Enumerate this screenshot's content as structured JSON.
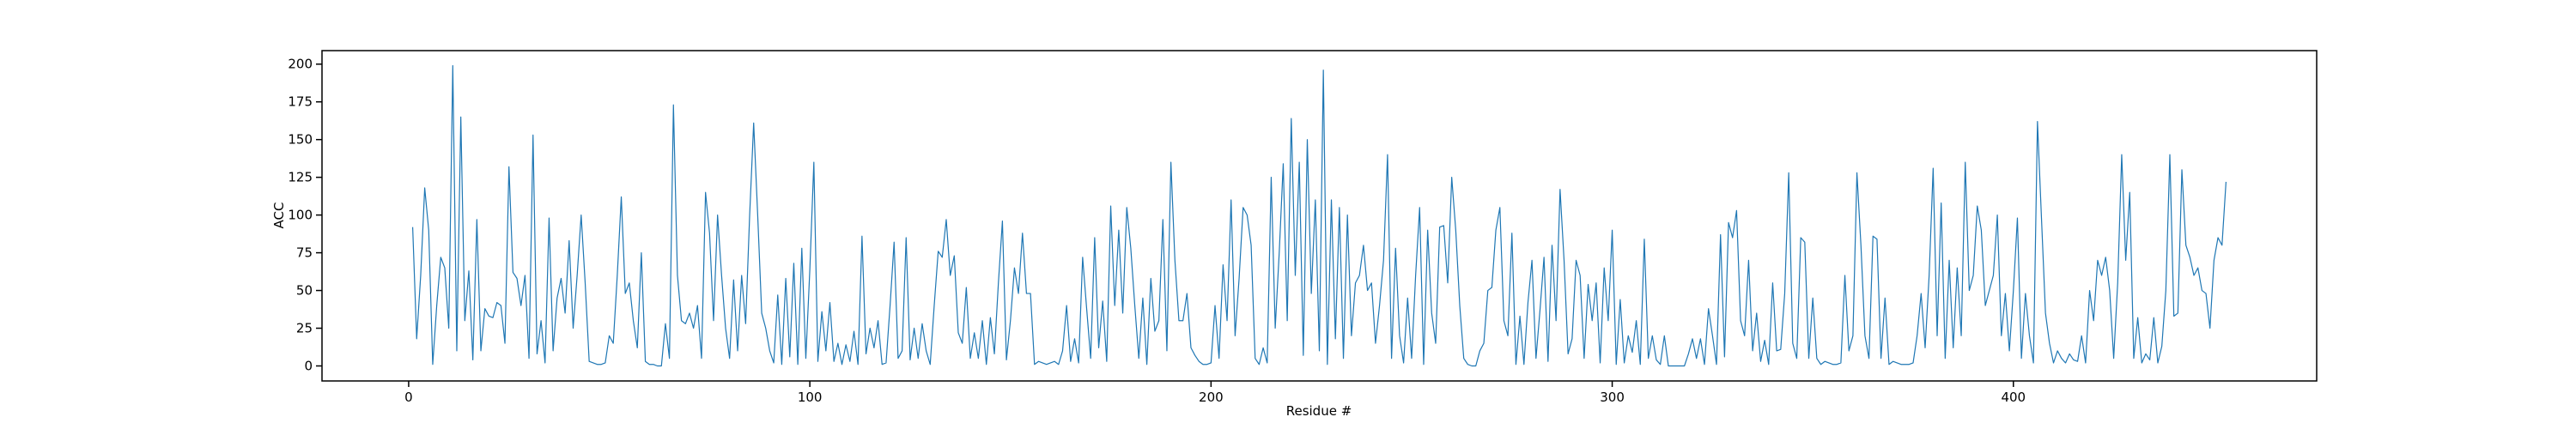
{
  "chart_data": {
    "type": "line",
    "xlabel": "Residue #",
    "ylabel": "ACC",
    "color": "#1f77b4",
    "x": [
      1,
      2,
      3,
      4,
      5,
      6,
      7,
      8,
      9,
      10,
      11,
      12,
      13,
      14,
      15,
      16,
      17,
      18,
      19,
      20,
      21,
      22,
      23,
      24,
      25,
      26,
      27,
      28,
      29,
      30,
      31,
      32,
      33,
      34,
      35,
      36,
      37,
      38,
      39,
      40,
      41,
      42,
      43,
      44,
      45,
      46,
      47,
      48,
      49,
      50,
      51,
      52,
      53,
      54,
      55,
      56,
      57,
      58,
      59,
      60,
      61,
      62,
      63,
      64,
      65,
      66,
      67,
      68,
      69,
      70,
      71,
      72,
      73,
      74,
      75,
      76,
      77,
      78,
      79,
      80,
      81,
      82,
      83,
      84,
      85,
      86,
      87,
      88,
      89,
      90,
      91,
      92,
      93,
      94,
      95,
      96,
      97,
      98,
      99,
      100,
      101,
      102,
      103,
      104,
      105,
      106,
      107,
      108,
      109,
      110,
      111,
      112,
      113,
      114,
      115,
      116,
      117,
      118,
      119,
      120,
      121,
      122,
      123,
      124,
      125,
      126,
      127,
      128,
      129,
      130,
      131,
      132,
      133,
      134,
      135,
      136,
      137,
      138,
      139,
      140,
      141,
      142,
      143,
      144,
      145,
      146,
      147,
      148,
      149,
      150,
      151,
      152,
      153,
      154,
      155,
      156,
      157,
      158,
      159,
      160,
      161,
      162,
      163,
      164,
      165,
      166,
      167,
      168,
      169,
      170,
      171,
      172,
      173,
      174,
      175,
      176,
      177,
      178,
      179,
      180,
      181,
      182,
      183,
      184,
      185,
      186,
      187,
      188,
      189,
      190,
      191,
      192,
      193,
      194,
      195,
      196,
      197,
      198,
      199,
      200,
      201,
      202,
      203,
      204,
      205,
      206,
      207,
      208,
      209,
      210,
      211,
      212,
      213,
      214,
      215,
      216,
      217,
      218,
      219,
      220,
      221,
      222,
      223,
      224,
      225,
      226,
      227,
      228,
      229,
      230,
      231,
      232,
      233,
      234,
      235,
      236,
      237,
      238,
      239,
      240,
      241,
      242,
      243,
      244,
      245,
      246,
      247,
      248,
      249,
      250,
      251,
      252,
      253,
      254,
      255,
      256,
      257,
      258,
      259,
      260,
      261,
      262,
      263,
      264,
      265,
      266,
      267,
      268,
      269,
      270,
      271,
      272,
      273,
      274,
      275,
      276,
      277,
      278,
      279,
      280,
      281,
      282,
      283,
      284,
      285,
      286,
      287,
      288,
      289,
      290,
      291,
      292,
      293,
      294,
      295,
      296,
      297,
      298,
      299,
      300,
      301,
      302,
      303,
      304,
      305,
      306,
      307,
      308,
      309,
      310,
      311,
      312,
      313,
      314,
      315,
      316,
      317,
      318,
      319,
      320,
      321,
      322,
      323,
      324,
      325,
      326,
      327,
      328,
      329,
      330,
      331,
      332,
      333,
      334,
      335,
      336,
      337,
      338,
      339,
      340,
      341,
      342,
      343,
      344,
      345,
      346,
      347,
      348,
      349,
      350,
      351,
      352,
      353,
      354,
      355,
      356,
      357,
      358,
      359,
      360,
      361,
      362,
      363,
      364,
      365,
      366,
      367,
      368,
      369,
      370,
      371,
      372,
      373,
      374,
      375,
      376,
      377,
      378,
      379,
      380,
      381,
      382,
      383,
      384,
      385,
      386,
      387,
      388,
      389,
      390,
      391,
      392,
      393,
      394,
      395,
      396,
      397,
      398,
      399,
      400,
      401,
      402,
      403,
      404,
      405,
      406,
      407,
      408,
      409,
      410,
      411,
      412,
      413,
      414,
      415,
      416,
      417,
      418,
      419,
      420,
      421,
      422,
      423,
      424,
      425,
      426,
      427,
      428,
      429,
      430,
      431,
      432,
      433,
      434,
      435,
      436,
      437,
      438,
      439,
      440,
      441,
      442,
      443,
      444,
      445,
      446,
      447,
      448,
      449,
      450,
      451,
      452,
      453
    ],
    "values": [
      92,
      18,
      60,
      118,
      90,
      1,
      40,
      72,
      65,
      25,
      199,
      10,
      165,
      30,
      63,
      4,
      97,
      10,
      38,
      33,
      32,
      42,
      40,
      15,
      132,
      62,
      58,
      40,
      60,
      5,
      153,
      8,
      30,
      2,
      98,
      10,
      45,
      58,
      35,
      83,
      25,
      60,
      100,
      55,
      3,
      2,
      1,
      1,
      2,
      20,
      15,
      60,
      112,
      48,
      55,
      30,
      12,
      75,
      3,
      1,
      1,
      0,
      0,
      28,
      5,
      173,
      60,
      30,
      28,
      35,
      25,
      40,
      5,
      115,
      88,
      30,
      100,
      60,
      25,
      5,
      57,
      10,
      60,
      28,
      100,
      161,
      100,
      35,
      25,
      10,
      2,
      47,
      1,
      58,
      6,
      68,
      1,
      78,
      5,
      64,
      135,
      3,
      36,
      10,
      42,
      3,
      15,
      1,
      14,
      3,
      23,
      1,
      86,
      8,
      25,
      12,
      30,
      1,
      2,
      40,
      82,
      5,
      10,
      85,
      4,
      25,
      5,
      28,
      10,
      1,
      40,
      76,
      72,
      97,
      60,
      73,
      22,
      15,
      52,
      5,
      22,
      5,
      30,
      1,
      32,
      8,
      55,
      96,
      4,
      30,
      65,
      48,
      88,
      48,
      48,
      1,
      3,
      2,
      1,
      2,
      3,
      1,
      10,
      40,
      3,
      18,
      2,
      72,
      38,
      5,
      85,
      12,
      43,
      3,
      106,
      40,
      90,
      35,
      105,
      78,
      40,
      5,
      45,
      1,
      58,
      23,
      30,
      97,
      10,
      135,
      70,
      30,
      30,
      48,
      12,
      7,
      3,
      1,
      1,
      2,
      40,
      5,
      67,
      30,
      110,
      20,
      58,
      105,
      100,
      80,
      5,
      1,
      12,
      2,
      125,
      25,
      75,
      134,
      30,
      164,
      60,
      135,
      7,
      150,
      48,
      110,
      10,
      196,
      1,
      110,
      18,
      105,
      5,
      100,
      20,
      55,
      60,
      80,
      50,
      55,
      15,
      40,
      70,
      140,
      5,
      78,
      20,
      2,
      45,
      5,
      60,
      105,
      1,
      90,
      35,
      15,
      92,
      93,
      55,
      125,
      90,
      40,
      5,
      1,
      0,
      0,
      10,
      15,
      50,
      52,
      90,
      105,
      30,
      20,
      88,
      1,
      33,
      1,
      42,
      70,
      5,
      37,
      72,
      3,
      80,
      30,
      117,
      70,
      8,
      18,
      70,
      60,
      5,
      54,
      30,
      55,
      2,
      65,
      30,
      90,
      1,
      44,
      2,
      20,
      9,
      30,
      1,
      84,
      5,
      20,
      4,
      1,
      20,
      0,
      0,
      0,
      0,
      0,
      8,
      18,
      5,
      18,
      1,
      38,
      20,
      1,
      87,
      6,
      95,
      85,
      103,
      30,
      20,
      70,
      10,
      35,
      3,
      17,
      1,
      55,
      10,
      11,
      48,
      128,
      15,
      5,
      85,
      82,
      5,
      45,
      5,
      1,
      3,
      2,
      1,
      1,
      2,
      60,
      10,
      20,
      128,
      80,
      20,
      5,
      86,
      84,
      5,
      45,
      1,
      3,
      2,
      1,
      1,
      1,
      2,
      20,
      48,
      12,
      60,
      131,
      20,
      108,
      5,
      70,
      12,
      65,
      20,
      135,
      50,
      60,
      106,
      90,
      40,
      50,
      60,
      100,
      20,
      48,
      10,
      50,
      98,
      5,
      48,
      20,
      2,
      162,
      98,
      35,
      15,
      2,
      10,
      5,
      2,
      8,
      4,
      3,
      20,
      2,
      50,
      30,
      70,
      60,
      72,
      50,
      5,
      55,
      140,
      70,
      115,
      5,
      32,
      2,
      8,
      4,
      32,
      2,
      13,
      50,
      140,
      33,
      35,
      130,
      80,
      72,
      60,
      65,
      50,
      48,
      25,
      70,
      85,
      80,
      122
    ],
    "xlim": [
      -21.6,
      475.6
    ],
    "ylim": [
      -9.95,
      208.95
    ],
    "xticks": [
      0,
      100,
      200,
      300,
      400
    ],
    "yticks": [
      0,
      25,
      50,
      75,
      100,
      125,
      150,
      175,
      200
    ]
  }
}
